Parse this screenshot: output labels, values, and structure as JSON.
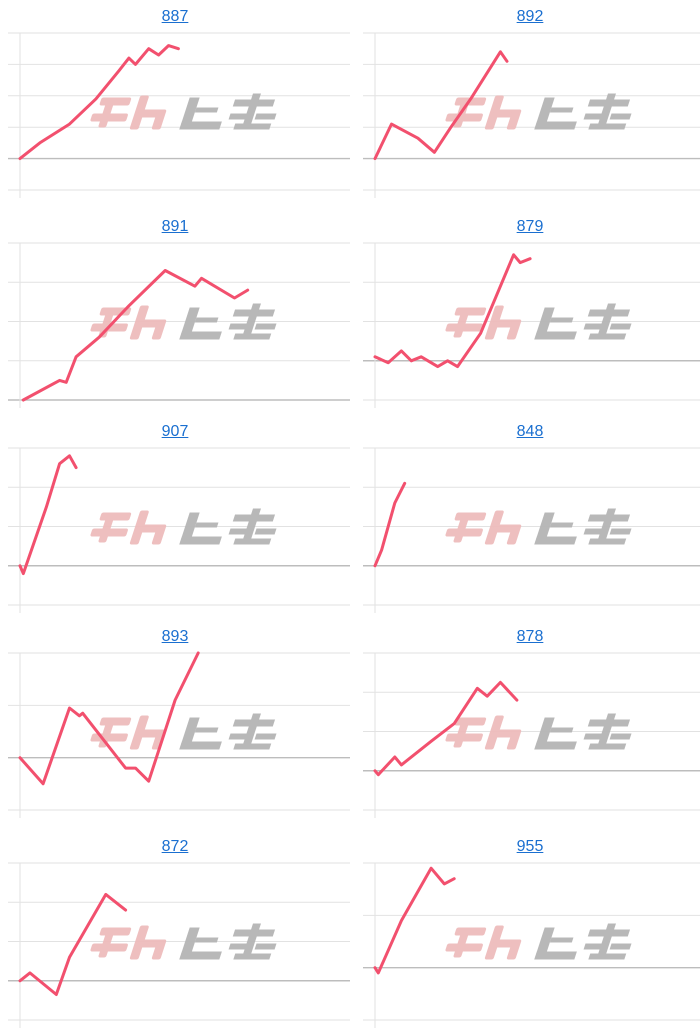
{
  "watermark": "みんレポ",
  "colors": {
    "line": "#f2506e",
    "title": "#1a6fd0",
    "grid": "#e2e2e2",
    "zero_line": "#bdbdbd",
    "watermark_pink": "#eebcbc",
    "watermark_gray": "#b5b5b5"
  },
  "chart_data": [
    {
      "type": "line",
      "title": "887",
      "ylim": [
        -1,
        4
      ],
      "grid": true,
      "points": [
        [
          0,
          0
        ],
        [
          6,
          0.5
        ],
        [
          15,
          1.1
        ],
        [
          23,
          1.9
        ],
        [
          30,
          2.8
        ],
        [
          33,
          3.2
        ],
        [
          35,
          3.0
        ],
        [
          39,
          3.5
        ],
        [
          42,
          3.3
        ],
        [
          45,
          3.6
        ],
        [
          48,
          3.5
        ]
      ]
    },
    {
      "type": "line",
      "title": "892",
      "ylim": [
        -1,
        4
      ],
      "grid": true,
      "points": [
        [
          0,
          0
        ],
        [
          5,
          1.1
        ],
        [
          13,
          0.65
        ],
        [
          18,
          0.2
        ],
        [
          23,
          1.0
        ],
        [
          29,
          1.9
        ],
        [
          38,
          3.4
        ],
        [
          40,
          3.1
        ]
      ]
    },
    {
      "type": "line",
      "title": "891",
      "ylim": [
        0,
        4
      ],
      "grid": true,
      "points": [
        [
          1,
          0
        ],
        [
          12,
          0.5
        ],
        [
          14,
          0.45
        ],
        [
          17,
          1.1
        ],
        [
          24,
          1.6
        ],
        [
          33,
          2.4
        ],
        [
          44,
          3.3
        ],
        [
          53,
          2.9
        ],
        [
          55,
          3.1
        ],
        [
          65,
          2.6
        ],
        [
          69,
          2.8
        ]
      ]
    },
    {
      "type": "line",
      "title": "879",
      "ylim": [
        -1,
        3
      ],
      "grid": true,
      "points": [
        [
          0,
          0.1
        ],
        [
          4,
          -0.05
        ],
        [
          8,
          0.25
        ],
        [
          11,
          0
        ],
        [
          14,
          0.1
        ],
        [
          19,
          -0.15
        ],
        [
          22,
          0
        ],
        [
          25,
          -0.15
        ],
        [
          32,
          0.7
        ],
        [
          42,
          2.7
        ],
        [
          44,
          2.5
        ],
        [
          47,
          2.6
        ]
      ]
    },
    {
      "type": "line",
      "title": "907",
      "ylim": [
        -1,
        3
      ],
      "grid": true,
      "points": [
        [
          0,
          0
        ],
        [
          1,
          -0.2
        ],
        [
          8,
          1.5
        ],
        [
          12,
          2.6
        ],
        [
          15,
          2.8
        ],
        [
          17,
          2.5
        ]
      ]
    },
    {
      "type": "line",
      "title": "848",
      "ylim": [
        -1,
        3
      ],
      "grid": true,
      "points": [
        [
          0,
          0
        ],
        [
          2,
          0.4
        ],
        [
          6,
          1.6
        ],
        [
          9,
          2.1
        ]
      ]
    },
    {
      "type": "line",
      "title": "893",
      "ylim": [
        -1,
        2
      ],
      "grid": true,
      "points": [
        [
          0,
          0
        ],
        [
          7,
          -0.5
        ],
        [
          15,
          0.95
        ],
        [
          18,
          0.8
        ],
        [
          19,
          0.85
        ],
        [
          32,
          -0.2
        ],
        [
          35,
          -0.2
        ],
        [
          39,
          -0.45
        ],
        [
          47,
          1.1
        ],
        [
          54,
          2.0
        ]
      ]
    },
    {
      "type": "line",
      "title": "878",
      "ylim": [
        -1,
        3
      ],
      "grid": true,
      "points": [
        [
          0,
          0
        ],
        [
          1,
          -0.1
        ],
        [
          6,
          0.35
        ],
        [
          8,
          0.15
        ],
        [
          17,
          0.75
        ],
        [
          24,
          1.2
        ],
        [
          31,
          2.1
        ],
        [
          34,
          1.9
        ],
        [
          38,
          2.25
        ],
        [
          43,
          1.8
        ]
      ]
    },
    {
      "type": "line",
      "title": "872",
      "ylim": [
        -1,
        3
      ],
      "grid": true,
      "points": [
        [
          0,
          0
        ],
        [
          3,
          0.2
        ],
        [
          11,
          -0.35
        ],
        [
          15,
          0.6
        ],
        [
          26,
          2.2
        ],
        [
          32,
          1.8
        ]
      ]
    },
    {
      "type": "line",
      "title": "955",
      "ylim": [
        -1,
        2
      ],
      "grid": true,
      "points": [
        [
          0,
          0
        ],
        [
          1,
          -0.1
        ],
        [
          8,
          0.9
        ],
        [
          17,
          1.9
        ],
        [
          21,
          1.6
        ],
        [
          24,
          1.7
        ]
      ]
    }
  ]
}
